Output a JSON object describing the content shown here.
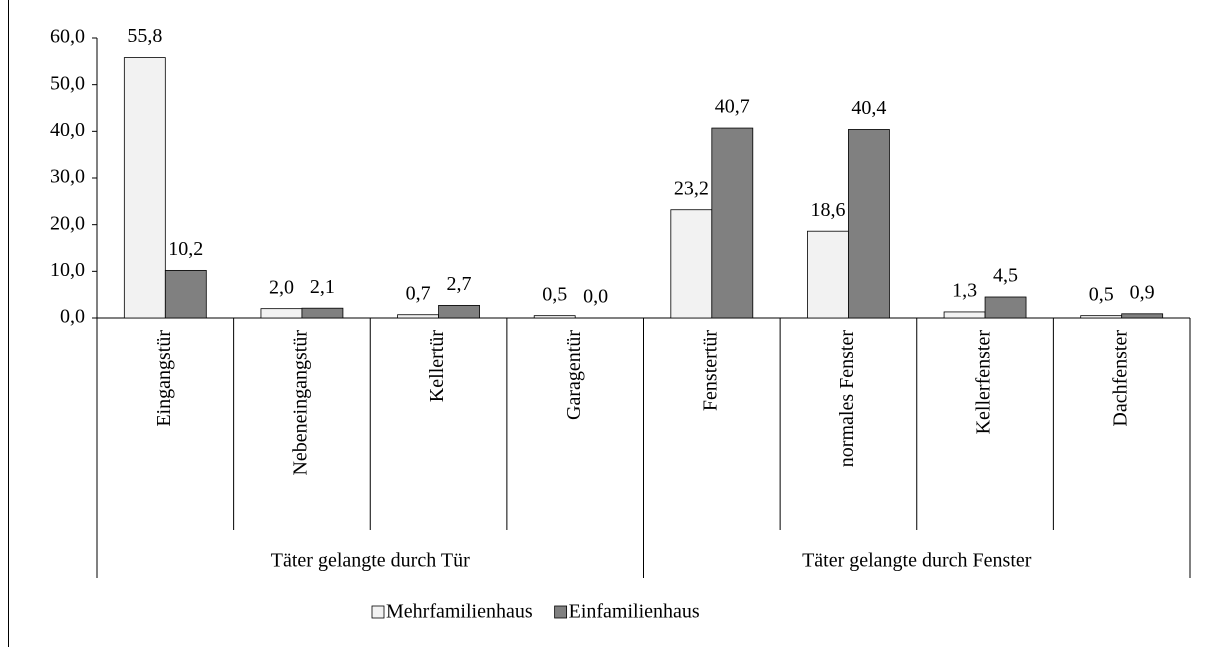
{
  "chart_data": {
    "type": "bar",
    "categories": [
      "Eingangstür",
      "Nebeneingangstür",
      "Kellertür",
      "Garagentür",
      "Fenstertür",
      "normales Fenster",
      "Kellerfenster",
      "Dachfenster"
    ],
    "groups": [
      {
        "name": "Täter gelangte durch Tür",
        "count": 4
      },
      {
        "name": "Täter gelangte durch Fenster",
        "count": 4
      }
    ],
    "series": [
      {
        "name": "Mehrfamilienhaus",
        "color": "#f2f2f2",
        "values": [
          55.8,
          2.0,
          0.7,
          0.5,
          23.2,
          18.6,
          1.3,
          0.5
        ],
        "value_labels": [
          "55,8",
          "2,0",
          "0,7",
          "0,5",
          "23,2",
          "18,6",
          "1,3",
          "0,5"
        ]
      },
      {
        "name": "Einfamilienhaus",
        "color": "#808080",
        "values": [
          10.2,
          2.1,
          2.7,
          0.0,
          40.7,
          40.4,
          4.5,
          0.9
        ],
        "value_labels": [
          "10,2",
          "2,1",
          "2,7",
          "0,0",
          "40,7",
          "40,4",
          "4,5",
          "0,9"
        ]
      }
    ],
    "ylim": [
      0,
      60
    ],
    "yticks": [
      {
        "value": 0,
        "label": "0,0"
      },
      {
        "value": 10,
        "label": "10,0"
      },
      {
        "value": 20,
        "label": "20,0"
      },
      {
        "value": 30,
        "label": "30,0"
      },
      {
        "value": 40,
        "label": "40,0"
      },
      {
        "value": 50,
        "label": "50,0"
      },
      {
        "value": 60,
        "label": "60,0"
      }
    ],
    "legend": "bottom"
  }
}
